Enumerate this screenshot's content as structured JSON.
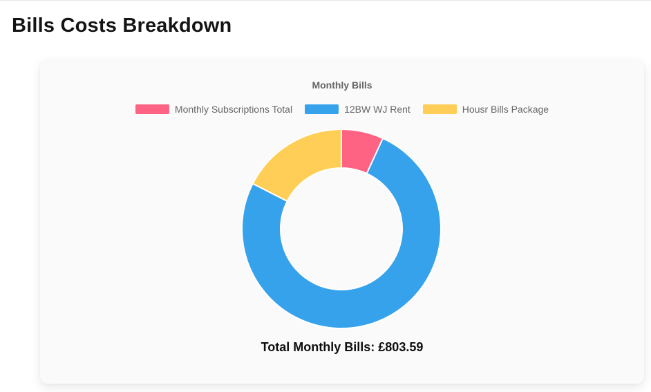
{
  "page": {
    "title": "Bills Costs Breakdown"
  },
  "chart_data": {
    "type": "doughnut",
    "title": "Monthly Bills",
    "legend_position": "top",
    "rotation_deg": 0,
    "cutout_percent": 61,
    "outer_radius_px": 144,
    "inner_radius_px": 88,
    "border_color": "#ffffff",
    "border_width": 2,
    "total": 803.59,
    "currency_symbol": "£",
    "total_label": "Total Monthly Bills: £803.59",
    "segments": [
      {
        "label": "Monthly Subscriptions Total",
        "value": 55.0,
        "percent_est": 6.8,
        "color": "#FF6384"
      },
      {
        "label": "12BW WJ Rent",
        "value": 608.0,
        "percent_est": 75.7,
        "color": "#36A2EB"
      },
      {
        "label": "Housr Bills Package",
        "value": 140.59,
        "percent_est": 17.5,
        "color": "#FFCE56"
      }
    ]
  }
}
